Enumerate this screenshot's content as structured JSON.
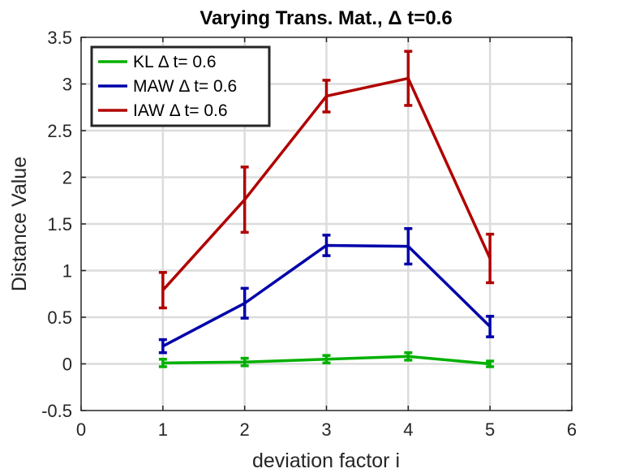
{
  "chart_data": {
    "type": "line",
    "title": "Varying Trans. Mat., Δ t=0.6",
    "xlabel": "deviation factor i",
    "ylabel": "Distance Value",
    "xlim": [
      0,
      6
    ],
    "ylim": [
      -0.5,
      3.5
    ],
    "xticks": [
      "0",
      "1",
      "2",
      "3",
      "4",
      "5",
      "6"
    ],
    "yticks": [
      "-0.5",
      "0",
      "0.5",
      "1",
      "1.5",
      "2",
      "2.5",
      "3",
      "3.5"
    ],
    "grid": true,
    "legend_position": "top-left",
    "x": [
      1,
      2,
      3,
      4,
      5
    ],
    "series": [
      {
        "name": "KL Δ t= 0.6",
        "color": "#00b000",
        "values": [
          0.01,
          0.02,
          0.05,
          0.08,
          0.0
        ],
        "err_low": [
          0.04,
          0.04,
          0.04,
          0.04,
          0.03
        ],
        "err_high": [
          0.04,
          0.04,
          0.04,
          0.04,
          0.03
        ]
      },
      {
        "name": "MAW Δ t= 0.6",
        "color": "#0000aa",
        "values": [
          0.19,
          0.65,
          1.27,
          1.26,
          0.4
        ],
        "err_low": [
          0.07,
          0.16,
          0.11,
          0.19,
          0.11
        ],
        "err_high": [
          0.07,
          0.16,
          0.11,
          0.19,
          0.11
        ]
      },
      {
        "name": "IAW Δ t= 0.6",
        "color": "#b00000",
        "values": [
          0.79,
          1.76,
          2.87,
          3.06,
          1.13
        ],
        "err_low": [
          0.19,
          0.35,
          0.17,
          0.29,
          0.26
        ],
        "err_high": [
          0.19,
          0.35,
          0.17,
          0.29,
          0.26
        ]
      }
    ]
  }
}
